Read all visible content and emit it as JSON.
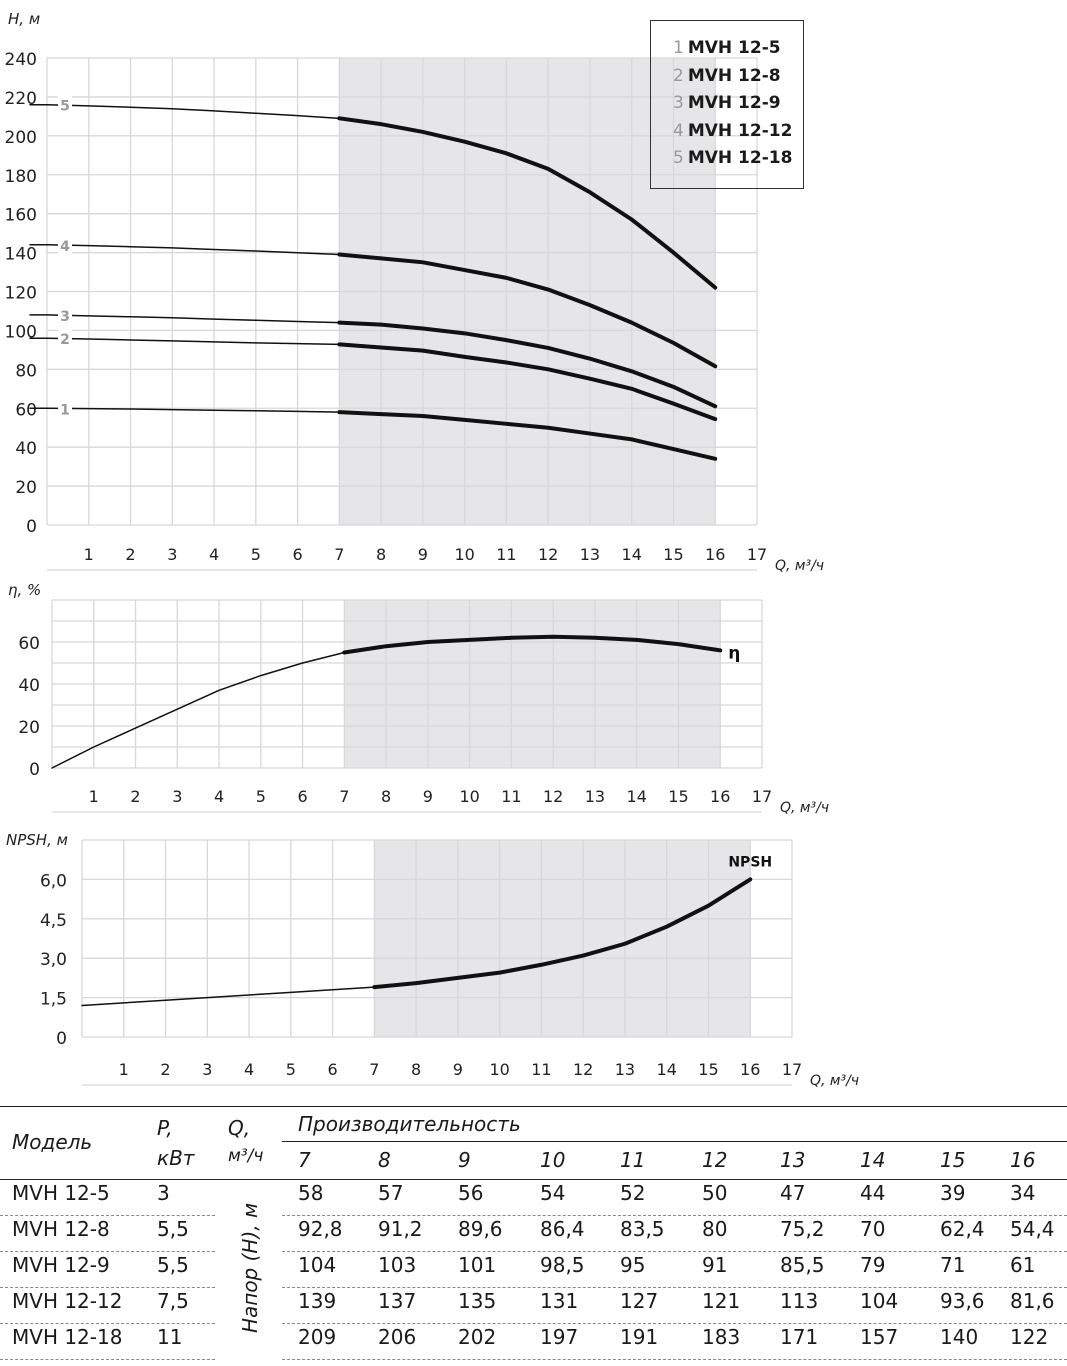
{
  "chart_data": [
    {
      "type": "line",
      "title": "",
      "ylabel": "H, м",
      "xlabel": "Q, м³/ч",
      "xlim": [
        0,
        17
      ],
      "ylim": [
        0,
        240
      ],
      "xticks": [
        "1",
        "2",
        "3",
        "4",
        "5",
        "6",
        "7",
        "8",
        "9",
        "10",
        "11",
        "12",
        "13",
        "14",
        "15",
        "16",
        "17"
      ],
      "yticks": [
        "0",
        "20",
        "40",
        "60",
        "80",
        "100",
        "120",
        "140",
        "160",
        "180",
        "200",
        "220",
        "240"
      ],
      "shaded_range": [
        7,
        16
      ],
      "grid": true,
      "x": [
        0,
        1,
        2,
        3,
        4,
        5,
        6,
        7,
        8,
        9,
        10,
        11,
        12,
        13,
        14,
        15,
        16
      ],
      "series": [
        {
          "name": "MVH 12-5",
          "label": "1",
          "values": [
            60,
            59.8,
            59.6,
            59.3,
            59,
            58.7,
            58.4,
            58,
            57,
            56,
            54,
            52,
            50,
            47,
            44,
            39,
            34
          ]
        },
        {
          "name": "MVH 12-8",
          "label": "2",
          "values": [
            96,
            95.6,
            95.1,
            94.6,
            94.1,
            93.6,
            93.2,
            92.8,
            91.2,
            89.6,
            86.4,
            83.5,
            80,
            75.2,
            70,
            62.4,
            54.4
          ]
        },
        {
          "name": "MVH 12-9",
          "label": "3",
          "values": [
            108,
            107.5,
            107,
            106.5,
            105.8,
            105.2,
            104.6,
            104,
            103,
            101,
            98.5,
            95,
            91,
            85.5,
            79,
            71,
            61
          ]
        },
        {
          "name": "MVH 12-12",
          "label": "4",
          "values": [
            144,
            143.6,
            143,
            142.4,
            141.6,
            140.8,
            139.9,
            139,
            137,
            135,
            131,
            127,
            121,
            113,
            104,
            93.6,
            81.6
          ]
        },
        {
          "name": "MVH 12-18",
          "label": "5",
          "values": [
            216,
            215.4,
            214.7,
            213.9,
            212.8,
            211.6,
            210.4,
            209,
            206,
            202,
            197,
            191,
            183,
            171,
            157,
            140,
            122
          ]
        }
      ],
      "legend": {
        "placement": "top-right",
        "entries": [
          {
            "n": "1",
            "name": "MVH 12-5"
          },
          {
            "n": "2",
            "name": "MVH 12-8"
          },
          {
            "n": "3",
            "name": "MVH 12-9"
          },
          {
            "n": "4",
            "name": "MVH 12-12"
          },
          {
            "n": "5",
            "name": "MVH 12-18"
          }
        ]
      }
    },
    {
      "type": "line",
      "ylabel": "η, %",
      "xlabel": "Q, м³/ч",
      "xlim": [
        0,
        17
      ],
      "ylim": [
        0,
        80
      ],
      "xticks": [
        "1",
        "2",
        "3",
        "4",
        "5",
        "6",
        "7",
        "8",
        "9",
        "10",
        "11",
        "12",
        "13",
        "14",
        "15",
        "16",
        "17"
      ],
      "yticks": [
        "0",
        "20",
        "40",
        "60"
      ],
      "shaded_range": [
        7,
        16
      ],
      "grid": true,
      "x": [
        0,
        1,
        2,
        3,
        4,
        5,
        6,
        7,
        8,
        9,
        10,
        11,
        12,
        13,
        14,
        15,
        16
      ],
      "series": [
        {
          "name": "η",
          "label": "η",
          "values": [
            0,
            10,
            19,
            28,
            37,
            44,
            50,
            55,
            58,
            60,
            61,
            62,
            62.5,
            62,
            61,
            59,
            56
          ]
        }
      ]
    },
    {
      "type": "line",
      "ylabel": "NPSH, м",
      "xlabel": "Q, м³/ч",
      "xlim": [
        0,
        17
      ],
      "ylim": [
        0,
        7.5
      ],
      "xticks": [
        "1",
        "2",
        "3",
        "4",
        "5",
        "6",
        "7",
        "8",
        "9",
        "10",
        "11",
        "12",
        "13",
        "14",
        "15",
        "16",
        "17"
      ],
      "yticks": [
        "0",
        "1,5",
        "3,0",
        "4,5",
        "6,0"
      ],
      "shaded_range": [
        7,
        16
      ],
      "grid": true,
      "x": [
        0,
        1,
        2,
        3,
        4,
        5,
        6,
        7,
        8,
        9,
        10,
        11,
        12,
        13,
        14,
        15,
        16
      ],
      "series": [
        {
          "name": "NPSH",
          "label": "NPSH",
          "values": [
            1.2,
            1.3,
            1.4,
            1.5,
            1.6,
            1.7,
            1.8,
            1.9,
            2.05,
            2.25,
            2.45,
            2.75,
            3.1,
            3.55,
            4.2,
            5.0,
            6.0
          ]
        }
      ]
    }
  ],
  "table": {
    "headers": {
      "model": "Модель",
      "power": "P,",
      "power_unit": "кВт",
      "flow": "Q,",
      "flow_unit": "м³/ч",
      "perf": "Производительность",
      "head": "Напор (H), м"
    },
    "q_values": [
      "7",
      "8",
      "9",
      "10",
      "11",
      "12",
      "13",
      "14",
      "15",
      "16"
    ],
    "rows": [
      {
        "model": "MVH 12-5",
        "p": "3",
        "h": [
          "58",
          "57",
          "56",
          "54",
          "52",
          "50",
          "47",
          "44",
          "39",
          "34"
        ]
      },
      {
        "model": "MVH 12-8",
        "p": "5,5",
        "h": [
          "92,8",
          "91,2",
          "89,6",
          "86,4",
          "83,5",
          "80",
          "75,2",
          "70",
          "62,4",
          "54,4"
        ]
      },
      {
        "model": "MVH 12-9",
        "p": "5,5",
        "h": [
          "104",
          "103",
          "101",
          "98,5",
          "95",
          "91",
          "85,5",
          "79",
          "71",
          "61"
        ]
      },
      {
        "model": "MVH 12-12",
        "p": "7,5",
        "h": [
          "139",
          "137",
          "135",
          "131",
          "127",
          "121",
          "113",
          "104",
          "93,6",
          "81,6"
        ]
      },
      {
        "model": "MVH 12-18",
        "p": "11",
        "h": [
          "209",
          "206",
          "202",
          "197",
          "191",
          "183",
          "171",
          "157",
          "140",
          "122"
        ]
      }
    ]
  }
}
